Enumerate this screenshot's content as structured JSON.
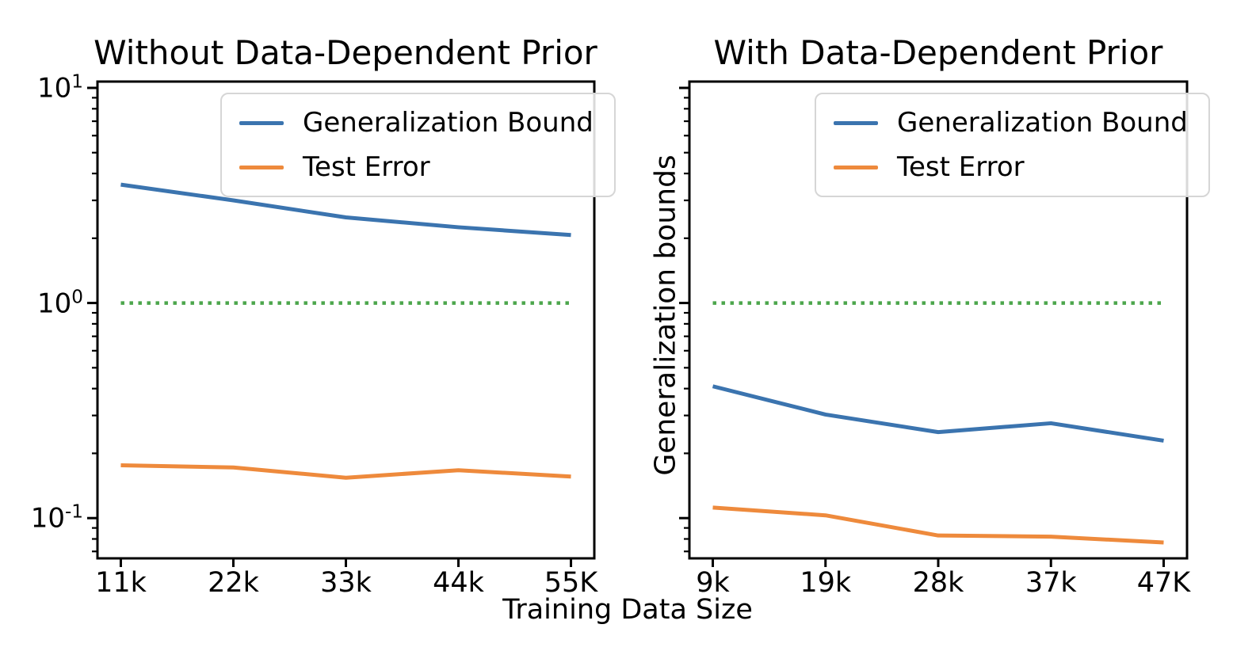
{
  "labels": {
    "xlabel": "Training Data Size"
  },
  "legend": {
    "items": [
      {
        "label": "Generalization Bound",
        "series": "generalization_bound"
      },
      {
        "label": "Test Error",
        "series": "test_error"
      }
    ]
  },
  "colors": {
    "generalization_bound": "#3b74af",
    "test_error": "#ee8a3c",
    "reference_line": "#4ca64c",
    "axis": "#000000"
  },
  "chart_data": [
    {
      "type": "line",
      "title": "Without Data-Dependent Prior",
      "xlabel": "Training Data Size",
      "ylabel": "",
      "yscale": "log",
      "ylim": [
        0.065,
        10.7
      ],
      "grid": false,
      "legend_position": "upper right",
      "categories": [
        "11k",
        "22k",
        "33k",
        "44k",
        "55K"
      ],
      "series": [
        {
          "name": "Generalization Bound",
          "values": [
            3.55,
            3.0,
            2.5,
            2.25,
            2.07
          ]
        },
        {
          "name": "Test Error",
          "values": [
            0.176,
            0.172,
            0.154,
            0.167,
            0.156
          ]
        }
      ],
      "reference_line": {
        "y": 1.0,
        "style": "dotted"
      },
      "ytick_base": "10",
      "yticks_exponents": [
        1,
        0,
        -1
      ],
      "show_ytick_labels": true
    },
    {
      "type": "line",
      "title": "With Data-Dependent Prior",
      "xlabel": "Training Data Size",
      "ylabel": "Generalization bounds",
      "yscale": "log",
      "ylim": [
        0.065,
        10.7
      ],
      "grid": false,
      "legend_position": "upper right",
      "categories": [
        "9k",
        "19k",
        "28k",
        "37k",
        "47K"
      ],
      "series": [
        {
          "name": "Generalization Bound",
          "values": [
            0.41,
            0.303,
            0.251,
            0.276,
            0.229
          ]
        },
        {
          "name": "Test Error",
          "values": [
            0.112,
            0.103,
            0.083,
            0.082,
            0.077
          ]
        }
      ],
      "reference_line": {
        "y": 1.0,
        "style": "dotted"
      },
      "ytick_base": "10",
      "yticks_exponents": [
        1,
        0,
        -1
      ],
      "show_ytick_labels": false
    }
  ]
}
